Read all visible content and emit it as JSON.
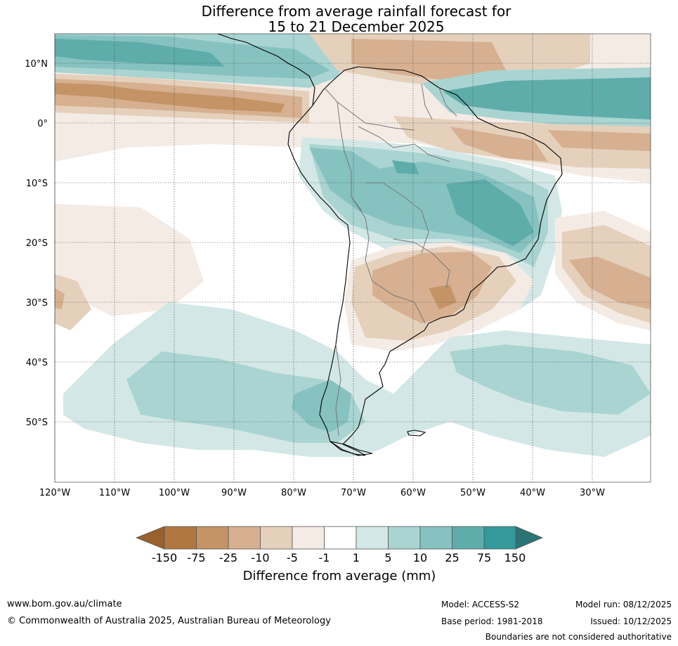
{
  "title_line1": "Difference from average rainfall forecast for",
  "title_line2": "15 to 21 December 2025",
  "lon_labels": [
    "120°W",
    "110°W",
    "100°W",
    "90°W",
    "80°W",
    "70°W",
    "60°W",
    "50°W",
    "40°W",
    "30°W"
  ],
  "lat_labels": [
    "10°N",
    "0°",
    "10°S",
    "20°S",
    "30°S",
    "40°S",
    "50°S"
  ],
  "legend": {
    "bin_labels": [
      "-150",
      "-75",
      "-25",
      "-10",
      "-5",
      "-1",
      "1",
      "5",
      "10",
      "25",
      "75",
      "150"
    ],
    "colors": [
      "#98612e",
      "#b07840",
      "#c49466",
      "#d6b090",
      "#e5d0bc",
      "#f4ebe5",
      "#ffffff",
      "#d3e8e6",
      "#a9d4d1",
      "#86c2c0",
      "#5eadab",
      "#33999a",
      "#2b7475"
    ],
    "title": "Difference from average (mm)"
  },
  "footer": {
    "website": "www.bom.gov.au/climate",
    "copyright": "© Commonwealth of Australia 2025, Australian Bureau of Meteorology",
    "model": "Model: ACCESS-S2",
    "model_run": "Model run: 08/12/2025",
    "base_period": "Base period: 1981-2018",
    "issued": "Issued: 10/12/2025",
    "disclaimer": "Boundaries are not considered authoritative"
  }
}
